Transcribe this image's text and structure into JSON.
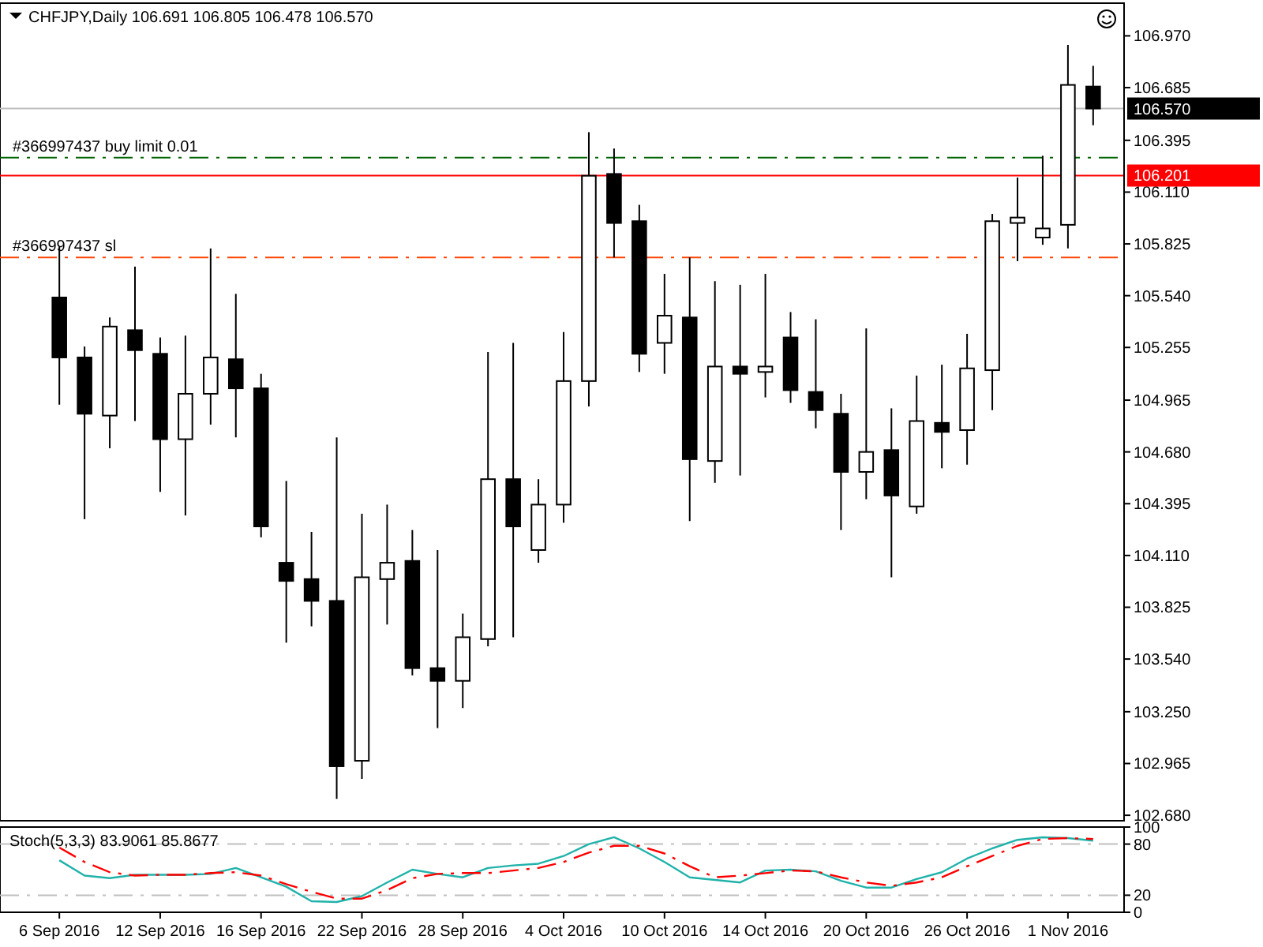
{
  "chart_data": [
    {
      "type": "candlestick",
      "title": "CHFJPY,Daily 106.691 106.805 106.478 106.570",
      "ohlc": [
        [
          105.53,
          105.81,
          104.94,
          105.2
        ],
        [
          105.2,
          105.26,
          104.31,
          104.89
        ],
        [
          104.88,
          105.42,
          104.7,
          105.37
        ],
        [
          105.35,
          105.7,
          104.85,
          105.24
        ],
        [
          105.22,
          105.31,
          104.46,
          104.75
        ],
        [
          104.75,
          105.32,
          104.33,
          105.0
        ],
        [
          105.0,
          105.8,
          104.83,
          105.2
        ],
        [
          105.19,
          105.55,
          104.76,
          105.03
        ],
        [
          105.03,
          105.11,
          104.21,
          104.27
        ],
        [
          104.07,
          104.52,
          103.63,
          103.97
        ],
        [
          103.98,
          104.24,
          103.72,
          103.86
        ],
        [
          103.86,
          104.76,
          102.77,
          102.95
        ],
        [
          102.98,
          104.34,
          102.88,
          103.99
        ],
        [
          103.98,
          104.39,
          103.73,
          104.07
        ],
        [
          104.08,
          104.25,
          103.45,
          103.49
        ],
        [
          103.49,
          104.14,
          103.16,
          103.42
        ],
        [
          103.42,
          103.79,
          103.27,
          103.66
        ],
        [
          103.65,
          105.23,
          103.61,
          104.53
        ],
        [
          104.53,
          105.28,
          103.66,
          104.27
        ],
        [
          104.14,
          104.53,
          104.07,
          104.39
        ],
        [
          104.39,
          105.34,
          104.29,
          105.07
        ],
        [
          105.07,
          106.44,
          104.93,
          106.2
        ],
        [
          106.21,
          106.35,
          105.75,
          105.94
        ],
        [
          105.95,
          106.04,
          105.12,
          105.22
        ],
        [
          105.28,
          105.66,
          105.11,
          105.43
        ],
        [
          105.42,
          105.75,
          104.3,
          104.64
        ],
        [
          104.63,
          105.62,
          104.51,
          105.15
        ],
        [
          105.15,
          105.6,
          104.55,
          105.11
        ],
        [
          105.12,
          105.66,
          104.98,
          105.15
        ],
        [
          105.31,
          105.45,
          104.95,
          105.02
        ],
        [
          105.01,
          105.41,
          104.81,
          104.91
        ],
        [
          104.89,
          105.0,
          104.25,
          104.57
        ],
        [
          104.57,
          105.36,
          104.42,
          104.68
        ],
        [
          104.69,
          104.92,
          103.99,
          104.44
        ],
        [
          104.38,
          105.1,
          104.34,
          104.85
        ],
        [
          104.84,
          105.16,
          104.59,
          104.79
        ],
        [
          104.8,
          105.33,
          104.61,
          105.14
        ],
        [
          105.13,
          105.99,
          104.91,
          105.95
        ],
        [
          105.94,
          106.19,
          105.73,
          105.97
        ],
        [
          105.86,
          106.31,
          105.82,
          105.91
        ],
        [
          105.93,
          106.92,
          105.8,
          106.7
        ],
        [
          106.691,
          106.805,
          106.478,
          106.57
        ]
      ],
      "ylim": [
        102.65,
        107.15
      ],
      "yticks": [
        {
          "value": 106.97,
          "label": "106.970"
        },
        {
          "value": 106.685,
          "label": "106.685"
        },
        {
          "value": 106.395,
          "label": "106.395"
        },
        {
          "value": 106.11,
          "label": "106.110"
        },
        {
          "value": 105.825,
          "label": "105.825"
        },
        {
          "value": 105.54,
          "label": "105.540"
        },
        {
          "value": 105.255,
          "label": "105.255"
        },
        {
          "value": 104.965,
          "label": "104.965"
        },
        {
          "value": 104.68,
          "label": "104.680"
        },
        {
          "value": 104.395,
          "label": "104.395"
        },
        {
          "value": 104.11,
          "label": "104.110"
        },
        {
          "value": 103.825,
          "label": "103.825"
        },
        {
          "value": 103.54,
          "label": "103.540"
        },
        {
          "value": 103.25,
          "label": "103.250"
        },
        {
          "value": 102.965,
          "label": "102.965"
        },
        {
          "value": 102.68,
          "label": "102.680"
        }
      ],
      "ref_lines": [
        {
          "axis": "y",
          "value": 106.57,
          "label": "106.570",
          "color": "#c0c0c0",
          "line_style": "solid"
        },
        {
          "axis": "y",
          "value": 106.201,
          "label": "106.201",
          "color": "#ff0000",
          "line_style": "solid"
        },
        {
          "axis": "y",
          "value": 106.3,
          "label": "#366997437 buy limit 0.01",
          "color": "#006400",
          "line_style": "dashed"
        },
        {
          "axis": "y",
          "value": 105.75,
          "label": "#366997437 sl",
          "color": "#ff4500",
          "line_style": "dashed"
        }
      ]
    },
    {
      "type": "line",
      "title": "Stoch(5,3,3) 83.9061 85.8677",
      "categories": [
        "6 Sep 2016",
        null,
        null,
        null,
        "12 Sep 2016",
        null,
        null,
        null,
        "16 Sep 2016",
        null,
        null,
        null,
        "22 Sep 2016",
        null,
        null,
        null,
        "28 Sep 2016",
        null,
        null,
        null,
        "4 Oct 2016",
        null,
        null,
        null,
        "10 Oct 2016",
        null,
        null,
        null,
        "14 Oct 2016",
        null,
        null,
        null,
        "20 Oct 2016",
        null,
        null,
        null,
        "26 Oct 2016",
        null,
        null,
        null,
        "1 Nov 2016",
        null
      ],
      "series": [
        {
          "color": "#20b2aa",
          "line_style": "solid",
          "values": [
            61,
            43,
            40,
            44,
            44,
            44,
            45,
            52,
            41,
            30,
            13,
            12,
            19,
            35,
            50,
            45,
            41,
            52,
            55,
            57,
            66,
            80,
            88,
            75,
            59,
            41,
            38,
            35,
            49,
            50,
            48,
            37,
            29,
            29,
            39,
            47,
            63,
            75,
            85,
            88,
            87,
            84
          ]
        },
        {
          "color": "#ff0000",
          "line_style": "dashed",
          "values": [
            76,
            59,
            47,
            43,
            44,
            44,
            46,
            47,
            43,
            33,
            24,
            16,
            16,
            26,
            40,
            45,
            46,
            46,
            49,
            52,
            59,
            70,
            78,
            78,
            69,
            54,
            41,
            43,
            46,
            49,
            48,
            41,
            35,
            31,
            35,
            41,
            54,
            66,
            78,
            86,
            87,
            86
          ]
        }
      ],
      "ylim": [
        0,
        100
      ],
      "yticks": [
        0,
        20,
        80,
        100
      ],
      "ref_lines": [
        {
          "axis": "y",
          "value": 20,
          "color": "#c0c0c0",
          "line_style": "dashed"
        },
        {
          "axis": "y",
          "value": 80,
          "color": "#c0c0c0",
          "line_style": "dashed"
        }
      ]
    }
  ]
}
